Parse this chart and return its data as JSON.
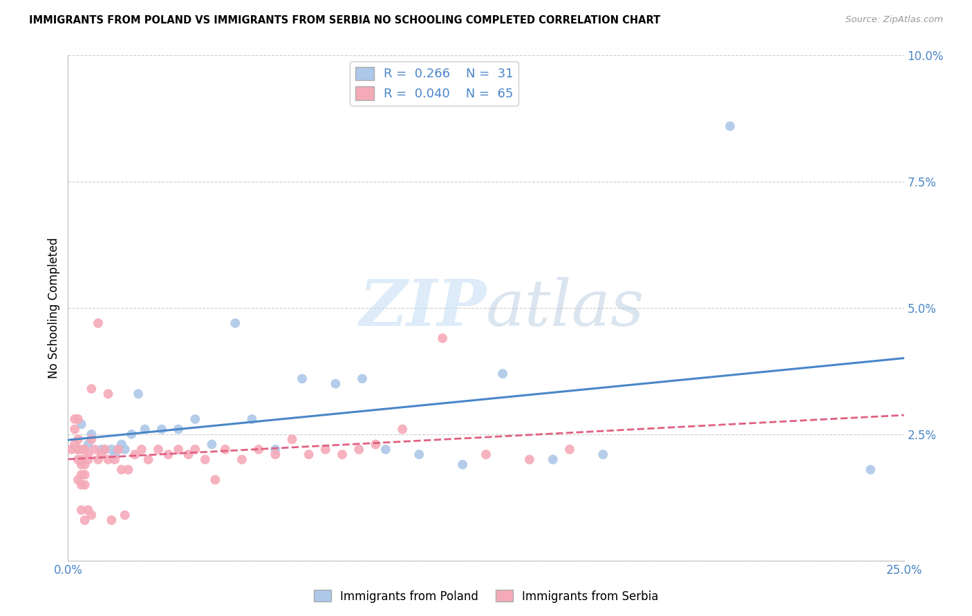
{
  "title": "IMMIGRANTS FROM POLAND VS IMMIGRANTS FROM SERBIA NO SCHOOLING COMPLETED CORRELATION CHART",
  "source": "Source: ZipAtlas.com",
  "xlabel": "",
  "ylabel": "No Schooling Completed",
  "xlim": [
    0.0,
    0.25
  ],
  "ylim": [
    0.0,
    0.1
  ],
  "xticks": [
    0.0,
    0.05,
    0.1,
    0.15,
    0.2,
    0.25
  ],
  "yticks": [
    0.0,
    0.025,
    0.05,
    0.075,
    0.1
  ],
  "xticklabels": [
    "0.0%",
    "",
    "",
    "",
    "",
    "25.0%"
  ],
  "yticklabels": [
    "",
    "2.5%",
    "5.0%",
    "7.5%",
    "10.0%"
  ],
  "legend_labels": [
    "Immigrants from Poland",
    "Immigrants from Serbia"
  ],
  "poland_color": "#adc8e8",
  "serbia_color": "#f5aab8",
  "poland_line_color": "#4a86c8",
  "serbia_line_color": "#e06080",
  "poland_R": 0.266,
  "poland_N": 31,
  "serbia_R": 0.04,
  "serbia_N": 65,
  "watermark_zip": "ZIP",
  "watermark_atlas": "atlas",
  "poland_points": [
    [
      0.004,
      0.027
    ],
    [
      0.006,
      0.023
    ],
    [
      0.007,
      0.025
    ],
    [
      0.01,
      0.022
    ],
    [
      0.011,
      0.022
    ],
    [
      0.013,
      0.022
    ],
    [
      0.014,
      0.021
    ],
    [
      0.015,
      0.022
    ],
    [
      0.016,
      0.023
    ],
    [
      0.017,
      0.022
    ],
    [
      0.019,
      0.025
    ],
    [
      0.021,
      0.033
    ],
    [
      0.023,
      0.026
    ],
    [
      0.028,
      0.026
    ],
    [
      0.033,
      0.026
    ],
    [
      0.038,
      0.028
    ],
    [
      0.043,
      0.023
    ],
    [
      0.05,
      0.047
    ],
    [
      0.055,
      0.028
    ],
    [
      0.062,
      0.022
    ],
    [
      0.07,
      0.036
    ],
    [
      0.08,
      0.035
    ],
    [
      0.088,
      0.036
    ],
    [
      0.095,
      0.022
    ],
    [
      0.105,
      0.021
    ],
    [
      0.118,
      0.019
    ],
    [
      0.13,
      0.037
    ],
    [
      0.145,
      0.02
    ],
    [
      0.16,
      0.021
    ],
    [
      0.198,
      0.086
    ],
    [
      0.24,
      0.018
    ]
  ],
  "serbia_points": [
    [
      0.001,
      0.022
    ],
    [
      0.002,
      0.026
    ],
    [
      0.002,
      0.023
    ],
    [
      0.002,
      0.028
    ],
    [
      0.003,
      0.02
    ],
    [
      0.003,
      0.024
    ],
    [
      0.003,
      0.022
    ],
    [
      0.003,
      0.016
    ],
    [
      0.003,
      0.022
    ],
    [
      0.003,
      0.028
    ],
    [
      0.004,
      0.019
    ],
    [
      0.004,
      0.02
    ],
    [
      0.004,
      0.017
    ],
    [
      0.004,
      0.022
    ],
    [
      0.004,
      0.015
    ],
    [
      0.004,
      0.01
    ],
    [
      0.005,
      0.019
    ],
    [
      0.005,
      0.022
    ],
    [
      0.005,
      0.017
    ],
    [
      0.005,
      0.015
    ],
    [
      0.005,
      0.008
    ],
    [
      0.006,
      0.02
    ],
    [
      0.006,
      0.01
    ],
    [
      0.006,
      0.021
    ],
    [
      0.007,
      0.034
    ],
    [
      0.007,
      0.024
    ],
    [
      0.007,
      0.009
    ],
    [
      0.008,
      0.022
    ],
    [
      0.009,
      0.02
    ],
    [
      0.01,
      0.021
    ],
    [
      0.011,
      0.022
    ],
    [
      0.012,
      0.02
    ],
    [
      0.013,
      0.008
    ],
    [
      0.014,
      0.02
    ],
    [
      0.015,
      0.022
    ],
    [
      0.016,
      0.018
    ],
    [
      0.017,
      0.009
    ],
    [
      0.018,
      0.018
    ],
    [
      0.02,
      0.021
    ],
    [
      0.022,
      0.022
    ],
    [
      0.024,
      0.02
    ],
    [
      0.027,
      0.022
    ],
    [
      0.03,
      0.021
    ],
    [
      0.033,
      0.022
    ],
    [
      0.036,
      0.021
    ],
    [
      0.038,
      0.022
    ],
    [
      0.041,
      0.02
    ],
    [
      0.044,
      0.016
    ],
    [
      0.047,
      0.022
    ],
    [
      0.052,
      0.02
    ],
    [
      0.057,
      0.022
    ],
    [
      0.062,
      0.021
    ],
    [
      0.067,
      0.024
    ],
    [
      0.072,
      0.021
    ],
    [
      0.077,
      0.022
    ],
    [
      0.082,
      0.021
    ],
    [
      0.087,
      0.022
    ],
    [
      0.092,
      0.023
    ],
    [
      0.1,
      0.026
    ],
    [
      0.112,
      0.044
    ],
    [
      0.125,
      0.021
    ],
    [
      0.138,
      0.02
    ],
    [
      0.15,
      0.022
    ],
    [
      0.012,
      0.033
    ],
    [
      0.009,
      0.047
    ]
  ]
}
